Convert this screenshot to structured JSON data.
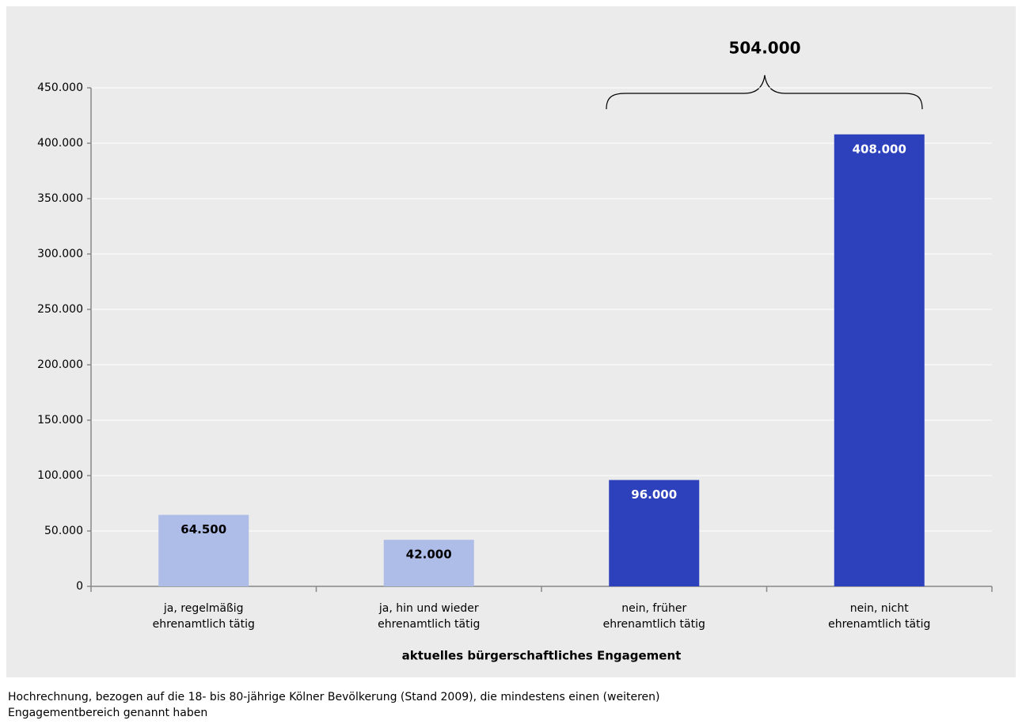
{
  "chart_data": {
    "type": "bar",
    "annotation": "504.000",
    "x_label": "aktuelles bürgerschaftliches Engagement",
    "categories": [
      [
        "ja, regelmäßig",
        "ehrenamtlich tätig"
      ],
      [
        "ja, hin und wieder",
        "ehrenamtlich tätig"
      ],
      [
        "nein, früher",
        "ehrenamtlich tätig"
      ],
      [
        "nein, nicht",
        "ehrenamtlich tätig"
      ]
    ],
    "values": [
      64500,
      42000,
      96000,
      408000
    ],
    "value_labels": [
      "64.500",
      "42.000",
      "96.000",
      "408.000"
    ],
    "colors": [
      "#aebce8",
      "#aebce8",
      "#2e41bd",
      "#2e41bd"
    ],
    "label_colors": [
      "#000000",
      "#000000",
      "#ffffff",
      "#ffffff"
    ],
    "ylim": [
      0,
      450000
    ],
    "yticks": [
      0,
      {
        "value": 50000,
        "label": "50.000"
      },
      {
        "value": 100000,
        "label": "100.000"
      },
      {
        "value": 150000,
        "label": "150.000"
      },
      {
        "value": 200000,
        "label": "200.000"
      },
      {
        "value": 250000,
        "label": "250.000"
      },
      {
        "value": 300000,
        "label": "300.000"
      },
      {
        "value": 350000,
        "label": "350.000"
      },
      {
        "value": 400000,
        "label": "400.000"
      },
      {
        "value": 450000,
        "label": "450.000"
      }
    ],
    "grid": true,
    "footnote": [
      "Hochrechnung, bezogen auf die 18- bis 80-jährige Kölner Bevölkerung (Stand 2009), die mindestens einen (weiteren)",
      "Engagementbereich genannt haben"
    ]
  }
}
